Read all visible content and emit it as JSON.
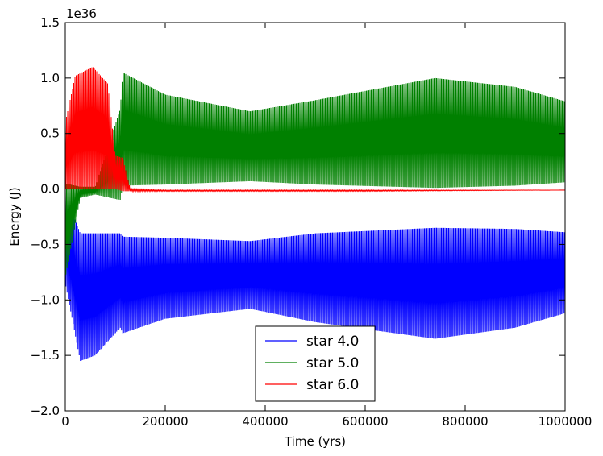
{
  "chart_data": {
    "type": "line",
    "title": "",
    "xlabel": "Time (yrs)",
    "ylabel": "Energy (J)",
    "y_offset_label": "1e36",
    "xlim": [
      0,
      1000000
    ],
    "ylim": [
      -2.0,
      1.5
    ],
    "x_ticks": [
      "0",
      "200000",
      "400000",
      "600000",
      "800000",
      "1000000"
    ],
    "y_ticks": [
      "−2.0",
      "−1.5",
      "−1.0",
      "−0.5",
      "0.0",
      "0.5",
      "1.0",
      "1.5"
    ],
    "grid": false,
    "legend_position": "lower-center",
    "series": [
      {
        "name": "star 4.0",
        "color": "#0000ff",
        "style": "dense-oscillation",
        "x": [
          0,
          30000,
          60000,
          110000,
          115000,
          200000,
          370000,
          500000,
          740000,
          900000,
          1000000
        ],
        "upper": [
          -0.05,
          -0.4,
          -0.4,
          -0.4,
          -0.43,
          -0.44,
          -0.47,
          -0.4,
          -0.35,
          -0.36,
          -0.39
        ],
        "lower": [
          -0.85,
          -1.55,
          -1.5,
          -1.25,
          -1.3,
          -1.17,
          -1.08,
          -1.2,
          -1.35,
          -1.25,
          -1.12
        ]
      },
      {
        "name": "star 5.0",
        "color": "#008000",
        "style": "dense-oscillation",
        "x": [
          0,
          30000,
          60000,
          110000,
          115000,
          200000,
          370000,
          500000,
          740000,
          900000,
          1000000
        ],
        "upper": [
          0.05,
          0.02,
          0.02,
          0.72,
          1.05,
          0.85,
          0.7,
          0.8,
          1.0,
          0.92,
          0.79
        ],
        "lower": [
          -0.8,
          -0.08,
          -0.05,
          -0.1,
          0.03,
          0.04,
          0.07,
          0.04,
          0.01,
          0.03,
          0.06
        ]
      },
      {
        "name": "star 6.0",
        "color": "#ff0000",
        "style": "dense-oscillation",
        "x": [
          0,
          20000,
          55000,
          85000,
          100000,
          115000,
          130000,
          200000,
          600000,
          1000000
        ],
        "upper": [
          0.6,
          1.02,
          1.1,
          0.95,
          0.3,
          0.28,
          0.0,
          -0.01,
          -0.01,
          -0.01
        ],
        "lower": [
          0.0,
          0.0,
          0.0,
          0.0,
          0.0,
          -0.02,
          -0.02,
          -0.02,
          -0.02,
          -0.01
        ]
      }
    ]
  }
}
